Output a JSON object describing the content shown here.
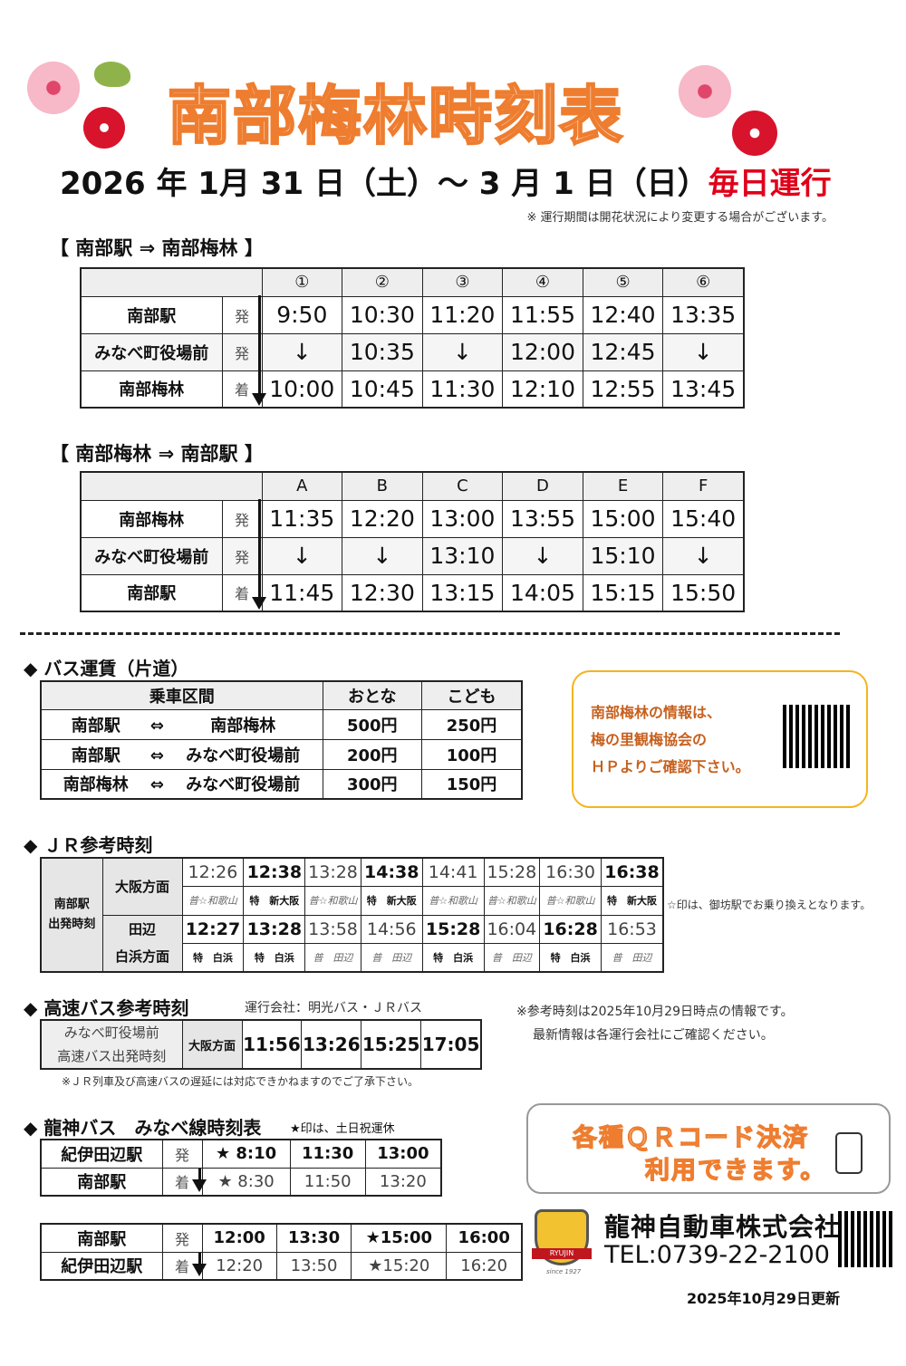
{
  "title": "南部梅林時刻表",
  "period": {
    "text": "2026 年  1月 31 日（土）～ 3 月 1 日（日）",
    "highlight": "毎日運行"
  },
  "period_note": "※ 運行期間は開花状況により変更する場合がございます。",
  "outbound": {
    "heading": "【 南部駅 ⇒ 南部梅林 】",
    "columns": [
      "①",
      "②",
      "③",
      "④",
      "⑤",
      "⑥"
    ],
    "rows": [
      {
        "stop": "南部駅",
        "mark": "発",
        "times": [
          "9:50",
          "10:30",
          "11:20",
          "11:55",
          "12:40",
          "13:35"
        ]
      },
      {
        "stop": "みなべ町役場前",
        "mark": "発",
        "times": [
          "↓",
          "10:35",
          "↓",
          "12:00",
          "12:45",
          "↓"
        ]
      },
      {
        "stop": "南部梅林",
        "mark": "着",
        "times": [
          "10:00",
          "10:45",
          "11:30",
          "12:10",
          "12:55",
          "13:45"
        ]
      }
    ]
  },
  "inbound": {
    "heading": "【 南部梅林 ⇒ 南部駅 】",
    "columns": [
      "A",
      "B",
      "C",
      "D",
      "E",
      "F"
    ],
    "rows": [
      {
        "stop": "南部梅林",
        "mark": "発",
        "times": [
          "11:35",
          "12:20",
          "13:00",
          "13:55",
          "15:00",
          "15:40"
        ]
      },
      {
        "stop": "みなべ町役場前",
        "mark": "発",
        "times": [
          "↓",
          "↓",
          "13:10",
          "↓",
          "15:10",
          "↓"
        ]
      },
      {
        "stop": "南部駅",
        "mark": "着",
        "times": [
          "11:45",
          "12:30",
          "13:15",
          "14:05",
          "15:15",
          "15:50"
        ]
      }
    ]
  },
  "fare": {
    "heading": "◆ バス運賃（片道）",
    "headers": [
      "乗車区間",
      "おとな",
      "こども"
    ],
    "rows": [
      {
        "from": "南部駅",
        "arrow": "⇔",
        "to": "南部梅林",
        "adult": "500円",
        "child": "250円"
      },
      {
        "from": "南部駅",
        "arrow": "⇔",
        "to": "みなべ町役場前",
        "adult": "200円",
        "child": "100円"
      },
      {
        "from": "南部梅林",
        "arrow": "⇔",
        "to": "みなべ町役場前",
        "adult": "300円",
        "child": "150円"
      }
    ]
  },
  "info": {
    "lines": [
      "南部梅林の情報は、",
      "梅の里観梅協会の",
      "ＨＰよりご確認下さい。"
    ]
  },
  "jr": {
    "heading": "◆ ＪＲ参考時刻",
    "station_label": "南部駅\n出発時刻",
    "osaka": {
      "label": "大阪方面",
      "times": [
        "12:26",
        "12:38",
        "13:28",
        "14:38",
        "14:41",
        "15:28",
        "16:30",
        "16:38"
      ],
      "bold": [
        false,
        true,
        false,
        true,
        false,
        false,
        false,
        true
      ],
      "types": [
        "普☆和歌山",
        "特　新大阪",
        "普☆和歌山",
        "特　新大阪",
        "普☆和歌山",
        "普☆和歌山",
        "普☆和歌山",
        "特　新大阪"
      ]
    },
    "tanabe": {
      "label": "田辺\n白浜方面",
      "times": [
        "12:27",
        "13:28",
        "13:58",
        "14:56",
        "15:28",
        "16:04",
        "16:28",
        "16:53"
      ],
      "bold": [
        true,
        true,
        false,
        false,
        true,
        false,
        true,
        false
      ],
      "types": [
        "特　白浜",
        "特　白浜",
        "普　田辺",
        "普　田辺",
        "特　白浜",
        "普　田辺",
        "特　白浜",
        "普　田辺"
      ]
    },
    "note": "☆印は、御坊駅でお乗り換えとなります。"
  },
  "express": {
    "heading": "◆ 高速バス参考時刻",
    "operator": "運行会社：明光バス・ＪＲバス",
    "stop_label": "みなべ町役場前\n高速バス出発時刻",
    "direction": "大阪方面",
    "times": [
      "11:56",
      "13:26",
      "15:25",
      "17:05"
    ],
    "note": "※ＪＲ列車及び高速バスの遅延には対応できかねますのでご了承下さい。",
    "ref_note": [
      "※参考時刻は2025年10月29日時点の情報です。",
      "最新情報は各運行会社にご確認ください。"
    ]
  },
  "ryujin": {
    "heading": "◆ 龍神バス　みなべ線時刻表",
    "star_note": "★印は、土日祝運休",
    "table1": [
      {
        "stop": "紀伊田辺駅",
        "mark": "発",
        "times": [
          "★ 8:10",
          "11:30",
          "13:00"
        ]
      },
      {
        "stop": "南部駅",
        "mark": "着",
        "times": [
          "★ 8:30",
          "11:50",
          "13:20"
        ]
      }
    ],
    "table2": [
      {
        "stop": "南部駅",
        "mark": "発",
        "times": [
          "12:00",
          "13:30",
          "★15:00",
          "16:00"
        ]
      },
      {
        "stop": "紀伊田辺駅",
        "mark": "着",
        "times": [
          "12:20",
          "13:50",
          "★15:20",
          "16:20"
        ]
      }
    ]
  },
  "qr_payment": {
    "line1": "各種ＱＲコード決済",
    "line2": "利用できます。"
  },
  "company": {
    "name": "龍神自動車株式会社",
    "tel": "TEL:0739-22-2100",
    "logo_text": "RYUJIN",
    "logo_since": "since 1927"
  },
  "updated": "2025年10月29日更新",
  "colors": {
    "title_orange": "#ee7d2f",
    "red": "#e0001a",
    "info_border": "#f2b51f",
    "info_text": "#c7601e"
  }
}
